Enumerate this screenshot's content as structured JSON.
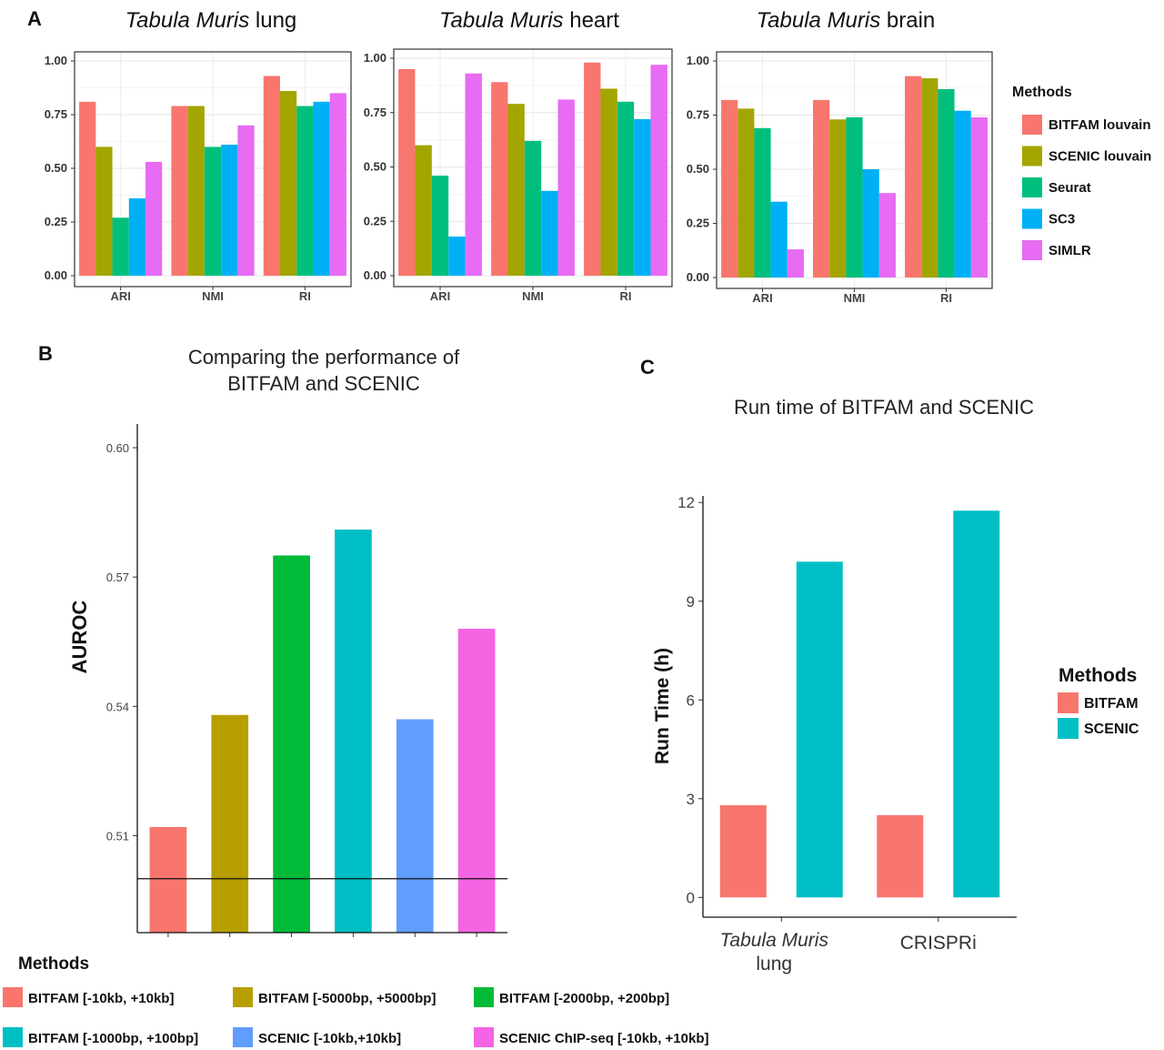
{
  "panel_letters": {
    "a": "A",
    "b": "B",
    "c": "C"
  },
  "chart_data": [
    {
      "type": "bar",
      "title_italic": "Tabula Muris",
      "title_rest": " lung",
      "categories": [
        "ARI",
        "NMI",
        "RI"
      ],
      "ylim": [
        0,
        1
      ],
      "yticks": [
        "0.00",
        "0.25",
        "0.50",
        "0.75",
        "1.00"
      ],
      "grid": true,
      "series": [
        {
          "name": "BITFAM louvain",
          "values": [
            0.81,
            0.79,
            0.93
          ]
        },
        {
          "name": "SCENIC louvain",
          "values": [
            0.6,
            0.79,
            0.86
          ]
        },
        {
          "name": "Seurat",
          "values": [
            0.27,
            0.6,
            0.79
          ]
        },
        {
          "name": "SC3",
          "values": [
            0.36,
            0.61,
            0.81
          ]
        },
        {
          "name": "SIMLR",
          "values": [
            0.53,
            0.7,
            0.85
          ]
        }
      ]
    },
    {
      "type": "bar",
      "title_italic": "Tabula Muris",
      "title_rest": " heart",
      "categories": [
        "ARI",
        "NMI",
        "RI"
      ],
      "ylim": [
        0,
        1
      ],
      "yticks": [
        "0.00",
        "0.25",
        "0.50",
        "0.75",
        "1.00"
      ],
      "grid": true,
      "series": [
        {
          "name": "BITFAM louvain",
          "values": [
            0.95,
            0.89,
            0.98
          ]
        },
        {
          "name": "SCENIC louvain",
          "values": [
            0.6,
            0.79,
            0.86
          ]
        },
        {
          "name": "Seurat",
          "values": [
            0.46,
            0.62,
            0.8
          ]
        },
        {
          "name": "SC3",
          "values": [
            0.18,
            0.39,
            0.72
          ]
        },
        {
          "name": "SIMLR",
          "values": [
            0.93,
            0.81,
            0.97
          ]
        }
      ]
    },
    {
      "type": "bar",
      "title_italic": "Tabula Muris",
      "title_rest": " brain",
      "categories": [
        "ARI",
        "NMI",
        "RI"
      ],
      "ylim": [
        0,
        1
      ],
      "yticks": [
        "0.00",
        "0.25",
        "0.50",
        "0.75",
        "1.00"
      ],
      "grid": true,
      "series": [
        {
          "name": "BITFAM louvain",
          "values": [
            0.82,
            0.82,
            0.93
          ]
        },
        {
          "name": "SCENIC louvain",
          "values": [
            0.78,
            0.73,
            0.92
          ]
        },
        {
          "name": "Seurat",
          "values": [
            0.69,
            0.74,
            0.87
          ]
        },
        {
          "name": "SC3",
          "values": [
            0.35,
            0.5,
            0.77
          ]
        },
        {
          "name": "SIMLR",
          "values": [
            0.13,
            0.39,
            0.74
          ]
        }
      ]
    },
    {
      "type": "bar",
      "title": "Comparing the performance of",
      "title_line2": "BITFAM and SCENIC",
      "ylabel": "AUROC",
      "ylim": [
        0.4875,
        0.6055
      ],
      "yticks": [
        "0.51",
        "0.54",
        "0.57",
        "0.60"
      ],
      "reference_line": 0.5,
      "series": [
        {
          "name": "BITFAM [-10kb, +10kb]",
          "value": 0.512
        },
        {
          "name": "BITFAM [-5000bp, +5000bp]",
          "value": 0.538
        },
        {
          "name": "BITFAM [-2000bp, +200bp]",
          "value": 0.575
        },
        {
          "name": "BITFAM [-1000bp, +100bp]",
          "value": 0.581
        },
        {
          "name": "SCENIC [-10kb,+10kb]",
          "value": 0.537
        },
        {
          "name": "SCENIC ChIP-seq [-10kb, +10kb]",
          "value": 0.558
        }
      ]
    },
    {
      "type": "bar",
      "title": "Run time of BITFAM and SCENIC",
      "ylabel": "Run Time (h)",
      "ylim": [
        -0.6,
        12.2
      ],
      "yticks": [
        "0",
        "3",
        "6",
        "9",
        "12"
      ],
      "categories": [
        {
          "italic": "Tabula Muris",
          "second": "lung"
        },
        {
          "italic": "",
          "second": "CRISPRi"
        }
      ],
      "series": [
        {
          "name": "BITFAM",
          "values": [
            2.8,
            2.5
          ]
        },
        {
          "name": "SCENIC",
          "values": [
            10.2,
            11.75
          ]
        }
      ]
    }
  ],
  "legends": {
    "a": {
      "title": "Methods",
      "items": [
        {
          "label": "BITFAM louvain",
          "color": "#F8766D"
        },
        {
          "label": "SCENIC louvain",
          "color": "#A3A500"
        },
        {
          "label": "Seurat",
          "color": "#00BF7D"
        },
        {
          "label": "SC3",
          "color": "#00B0F6"
        },
        {
          "label": "SIMLR",
          "color": "#E76BF3"
        }
      ]
    },
    "b": {
      "title": "Methods",
      "items": [
        {
          "label": "BITFAM [-10kb, +10kb]",
          "color": "#F8766D"
        },
        {
          "label": "BITFAM [-5000bp, +5000bp]",
          "color": "#B79F00"
        },
        {
          "label": "BITFAM [-2000bp, +200bp]",
          "color": "#00BA38"
        },
        {
          "label": "BITFAM [-1000bp, +100bp]",
          "color": "#00BFC4"
        },
        {
          "label": "SCENIC [-10kb,+10kb]",
          "color": "#619CFF"
        },
        {
          "label": "SCENIC ChIP-seq [-10kb, +10kb]",
          "color": "#F564E3"
        }
      ]
    },
    "c": {
      "title": "Methods",
      "items": [
        {
          "label": "BITFAM",
          "color": "#F8766D"
        },
        {
          "label": "SCENIC",
          "color": "#00BFC4"
        }
      ]
    }
  }
}
